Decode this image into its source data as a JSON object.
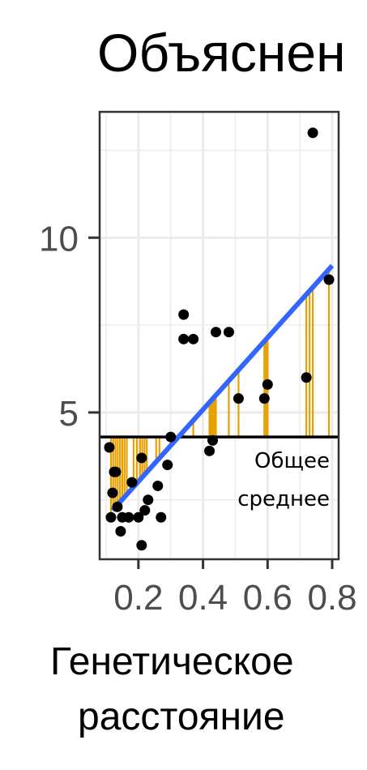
{
  "chart_data": {
    "type": "scatter",
    "title": "Объяснен",
    "xlabel_lines": [
      "Генетическое",
      "расстояние"
    ],
    "ylabel": "",
    "xlim": [
      0.08,
      0.82
    ],
    "ylim": [
      0.8,
      13.6
    ],
    "x_ticks": [
      0.2,
      0.4,
      0.6,
      0.8
    ],
    "x_tick_labels": [
      "0.2",
      "0.4",
      "0.6",
      "0.8"
    ],
    "y_ticks": [
      5,
      10
    ],
    "y_tick_labels": [
      "5",
      "10"
    ],
    "grid": true,
    "mean_value": 4.3,
    "mean_label_lines": [
      "Общее",
      "среднее"
    ],
    "regression_line": {
      "x": [
        0.12,
        0.8
      ],
      "y": [
        2.2,
        9.2
      ]
    },
    "points": [
      {
        "x": 0.11,
        "y": 4.0
      },
      {
        "x": 0.115,
        "y": 2.0
      },
      {
        "x": 0.12,
        "y": 2.7
      },
      {
        "x": 0.125,
        "y": 3.3
      },
      {
        "x": 0.13,
        "y": 3.3
      },
      {
        "x": 0.135,
        "y": 2.3
      },
      {
        "x": 0.145,
        "y": 1.6
      },
      {
        "x": 0.15,
        "y": 2.0
      },
      {
        "x": 0.17,
        "y": 2.0
      },
      {
        "x": 0.18,
        "y": 3.0
      },
      {
        "x": 0.2,
        "y": 2.0
      },
      {
        "x": 0.21,
        "y": 3.7
      },
      {
        "x": 0.21,
        "y": 1.2
      },
      {
        "x": 0.22,
        "y": 2.2
      },
      {
        "x": 0.23,
        "y": 2.5
      },
      {
        "x": 0.26,
        "y": 2.9
      },
      {
        "x": 0.27,
        "y": 2.0
      },
      {
        "x": 0.29,
        "y": 3.5
      },
      {
        "x": 0.3,
        "y": 4.3
      },
      {
        "x": 0.34,
        "y": 7.8
      },
      {
        "x": 0.34,
        "y": 7.1
      },
      {
        "x": 0.37,
        "y": 7.1
      },
      {
        "x": 0.42,
        "y": 3.9
      },
      {
        "x": 0.43,
        "y": 4.2
      },
      {
        "x": 0.44,
        "y": 7.3
      },
      {
        "x": 0.48,
        "y": 7.3
      },
      {
        "x": 0.51,
        "y": 5.4
      },
      {
        "x": 0.59,
        "y": 5.4
      },
      {
        "x": 0.6,
        "y": 5.8
      },
      {
        "x": 0.72,
        "y": 6.0
      },
      {
        "x": 0.74,
        "y": 13.0
      },
      {
        "x": 0.79,
        "y": 8.8
      }
    ],
    "explained_segments_x": [
      0.115,
      0.122,
      0.129,
      0.136,
      0.143,
      0.15,
      0.157,
      0.164,
      0.185,
      0.195,
      0.205,
      0.212,
      0.219,
      0.226,
      0.255,
      0.265,
      0.3,
      0.34,
      0.37,
      0.42,
      0.425,
      0.43,
      0.435,
      0.44,
      0.48,
      0.51,
      0.59,
      0.595,
      0.6,
      0.72,
      0.73,
      0.74,
      0.79
    ],
    "colors": {
      "point": "#000000",
      "regression": "#3366ff",
      "segment": "#e6a000",
      "mean_line": "#000000",
      "grid": "#ebebeb",
      "panel_border": "#333333"
    }
  }
}
